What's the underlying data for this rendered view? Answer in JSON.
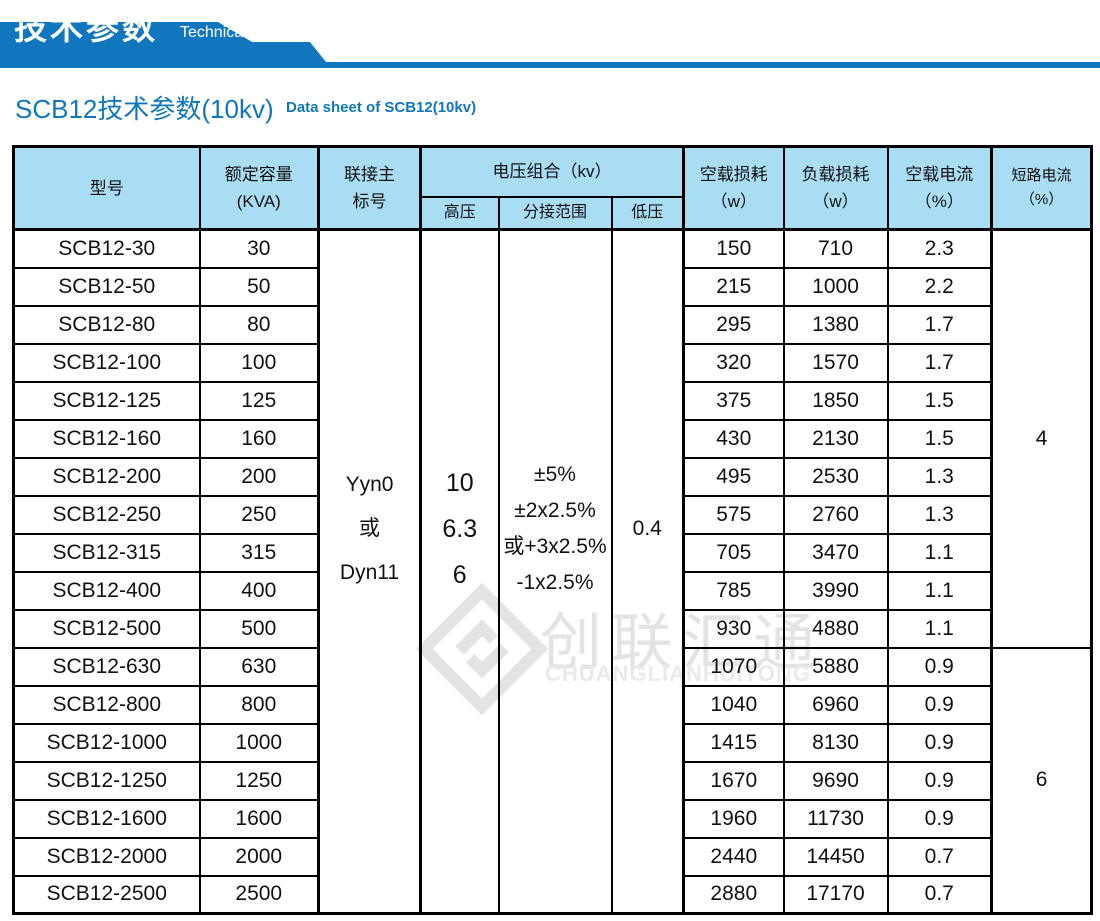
{
  "banner": {
    "title_zh": "技术参数",
    "title_en": "Technical parameter"
  },
  "section": {
    "title_zh": "SCB12技术参数(10kv)",
    "title_en": "Data sheet of SCB12(10kv)"
  },
  "colors": {
    "banner_blue": "#1077be",
    "header_light_blue": "#a9ddf3",
    "border_black": "#000000",
    "watermark_gray": "#e3e3e3"
  },
  "watermark": {
    "logo_icon": "diamond-logo-icon",
    "text_zh": "创联汇通",
    "text_en": "CHUANGLIANHUITONG"
  },
  "table": {
    "headers": {
      "model": "型号",
      "capacity": [
        "额定容量",
        "(KVA)"
      ],
      "connection": [
        "联接主",
        "标号"
      ],
      "voltage_group": "电压组合（kv）",
      "hv": "高压",
      "tap_range": "分接范围",
      "lv": "低压",
      "no_load_loss": [
        "空载损耗",
        "（w）"
      ],
      "load_loss": [
        "负载损耗",
        "（w）"
      ],
      "no_load_current": [
        "空载电流",
        "（%）"
      ],
      "short_circuit": [
        "短路电流",
        "（%）"
      ]
    },
    "merged": {
      "connection": [
        "Yyn0",
        "或",
        "Dyn11"
      ],
      "hv": [
        "10",
        "6.3",
        "6"
      ],
      "tap_range": [
        "±5%",
        "±2x2.5%",
        "或+3x2.5%",
        "-1x2.5%"
      ],
      "lv": "0.4",
      "short_circuit_groups": [
        {
          "value": "4",
          "rows": 11
        },
        {
          "value": "6",
          "rows": 7
        }
      ]
    },
    "rows": [
      {
        "model": "SCB12-30",
        "capacity": "30",
        "no_load_loss": "150",
        "load_loss": "710",
        "no_load_current": "2.3"
      },
      {
        "model": "SCB12-50",
        "capacity": "50",
        "no_load_loss": "215",
        "load_loss": "1000",
        "no_load_current": "2.2"
      },
      {
        "model": "SCB12-80",
        "capacity": "80",
        "no_load_loss": "295",
        "load_loss": "1380",
        "no_load_current": "1.7"
      },
      {
        "model": "SCB12-100",
        "capacity": "100",
        "no_load_loss": "320",
        "load_loss": "1570",
        "no_load_current": "1.7"
      },
      {
        "model": "SCB12-125",
        "capacity": "125",
        "no_load_loss": "375",
        "load_loss": "1850",
        "no_load_current": "1.5"
      },
      {
        "model": "SCB12-160",
        "capacity": "160",
        "no_load_loss": "430",
        "load_loss": "2130",
        "no_load_current": "1.5"
      },
      {
        "model": "SCB12-200",
        "capacity": "200",
        "no_load_loss": "495",
        "load_loss": "2530",
        "no_load_current": "1.3"
      },
      {
        "model": "SCB12-250",
        "capacity": "250",
        "no_load_loss": "575",
        "load_loss": "2760",
        "no_load_current": "1.3"
      },
      {
        "model": "SCB12-315",
        "capacity": "315",
        "no_load_loss": "705",
        "load_loss": "3470",
        "no_load_current": "1.1"
      },
      {
        "model": "SCB12-400",
        "capacity": "400",
        "no_load_loss": "785",
        "load_loss": "3990",
        "no_load_current": "1.1"
      },
      {
        "model": "SCB12-500",
        "capacity": "500",
        "no_load_loss": "930",
        "load_loss": "4880",
        "no_load_current": "1.1"
      },
      {
        "model": "SCB12-630",
        "capacity": "630",
        "no_load_loss": "1070",
        "load_loss": "5880",
        "no_load_current": "0.9"
      },
      {
        "model": "SCB12-800",
        "capacity": "800",
        "no_load_loss": "1040",
        "load_loss": "6960",
        "no_load_current": "0.9"
      },
      {
        "model": "SCB12-1000",
        "capacity": "1000",
        "no_load_loss": "1415",
        "load_loss": "8130",
        "no_load_current": "0.9"
      },
      {
        "model": "SCB12-1250",
        "capacity": "1250",
        "no_load_loss": "1670",
        "load_loss": "9690",
        "no_load_current": "0.9"
      },
      {
        "model": "SCB12-1600",
        "capacity": "1600",
        "no_load_loss": "1960",
        "load_loss": "11730",
        "no_load_current": "0.9"
      },
      {
        "model": "SCB12-2000",
        "capacity": "2000",
        "no_load_loss": "2440",
        "load_loss": "14450",
        "no_load_current": "0.7"
      },
      {
        "model": "SCB12-2500",
        "capacity": "2500",
        "no_load_loss": "2880",
        "load_loss": "17170",
        "no_load_current": "0.7"
      }
    ]
  }
}
